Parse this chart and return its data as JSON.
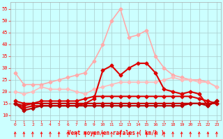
{
  "xlabel": "Vent moyen/en rafales ( km/h )",
  "x": [
    0,
    1,
    2,
    3,
    4,
    5,
    6,
    7,
    8,
    9,
    10,
    11,
    12,
    13,
    14,
    15,
    16,
    17,
    18,
    19,
    20,
    21,
    22,
    23
  ],
  "series": [
    {
      "values": [
        28,
        23,
        23,
        23,
        24,
        25,
        26,
        27,
        28,
        33,
        40,
        50,
        55,
        43,
        44,
        46,
        35,
        30,
        27,
        26,
        25,
        25,
        24,
        22
      ],
      "color": "#ffaaaa",
      "lw": 1.2,
      "marker": "D",
      "ms": 2.5
    },
    {
      "values": [
        20,
        19,
        20,
        22,
        21,
        21,
        21,
        20,
        19,
        21,
        22,
        23,
        24,
        24,
        24,
        24,
        24,
        25,
        26,
        25,
        25,
        24,
        24,
        22
      ],
      "color": "#ffbbbb",
      "lw": 1.2,
      "marker": "D",
      "ms": 2.5
    },
    {
      "values": [
        15,
        13,
        14,
        14,
        14,
        14,
        14,
        14,
        15,
        17,
        29,
        31,
        27,
        30,
        32,
        32,
        28,
        21,
        20,
        19,
        20,
        19,
        14,
        16
      ],
      "color": "#dd0000",
      "lw": 1.5,
      "marker": "D",
      "ms": 2.5
    },
    {
      "values": [
        16,
        15,
        15,
        16,
        16,
        16,
        16,
        16,
        17,
        18,
        18,
        18,
        18,
        18,
        18,
        18,
        18,
        18,
        18,
        18,
        18,
        17,
        16,
        15
      ],
      "color": "#dd0000",
      "lw": 1.5,
      "marker": "D",
      "ms": 2.5
    },
    {
      "values": [
        15,
        14,
        15,
        15,
        15,
        15,
        15,
        15,
        15,
        15,
        15,
        15,
        15,
        15,
        15,
        15,
        15,
        15,
        15,
        15,
        15,
        15,
        15,
        15
      ],
      "color": "#cc0000",
      "lw": 1.5,
      "marker": "D",
      "ms": 2.5
    },
    {
      "values": [
        15,
        12,
        13,
        14,
        14,
        14,
        14,
        14,
        14,
        14,
        14,
        14,
        14,
        14,
        14,
        14,
        14,
        14,
        14,
        14,
        15,
        15,
        14,
        16
      ],
      "color": "#bb0000",
      "lw": 1.5,
      "marker": "D",
      "ms": 2.5
    }
  ],
  "ylim": [
    8,
    58
  ],
  "yticks": [
    10,
    15,
    20,
    25,
    30,
    35,
    40,
    45,
    50,
    55
  ],
  "xlim": [
    -0.5,
    23.5
  ],
  "bg_color": "#ccffff",
  "grid_color": "#aacccc"
}
